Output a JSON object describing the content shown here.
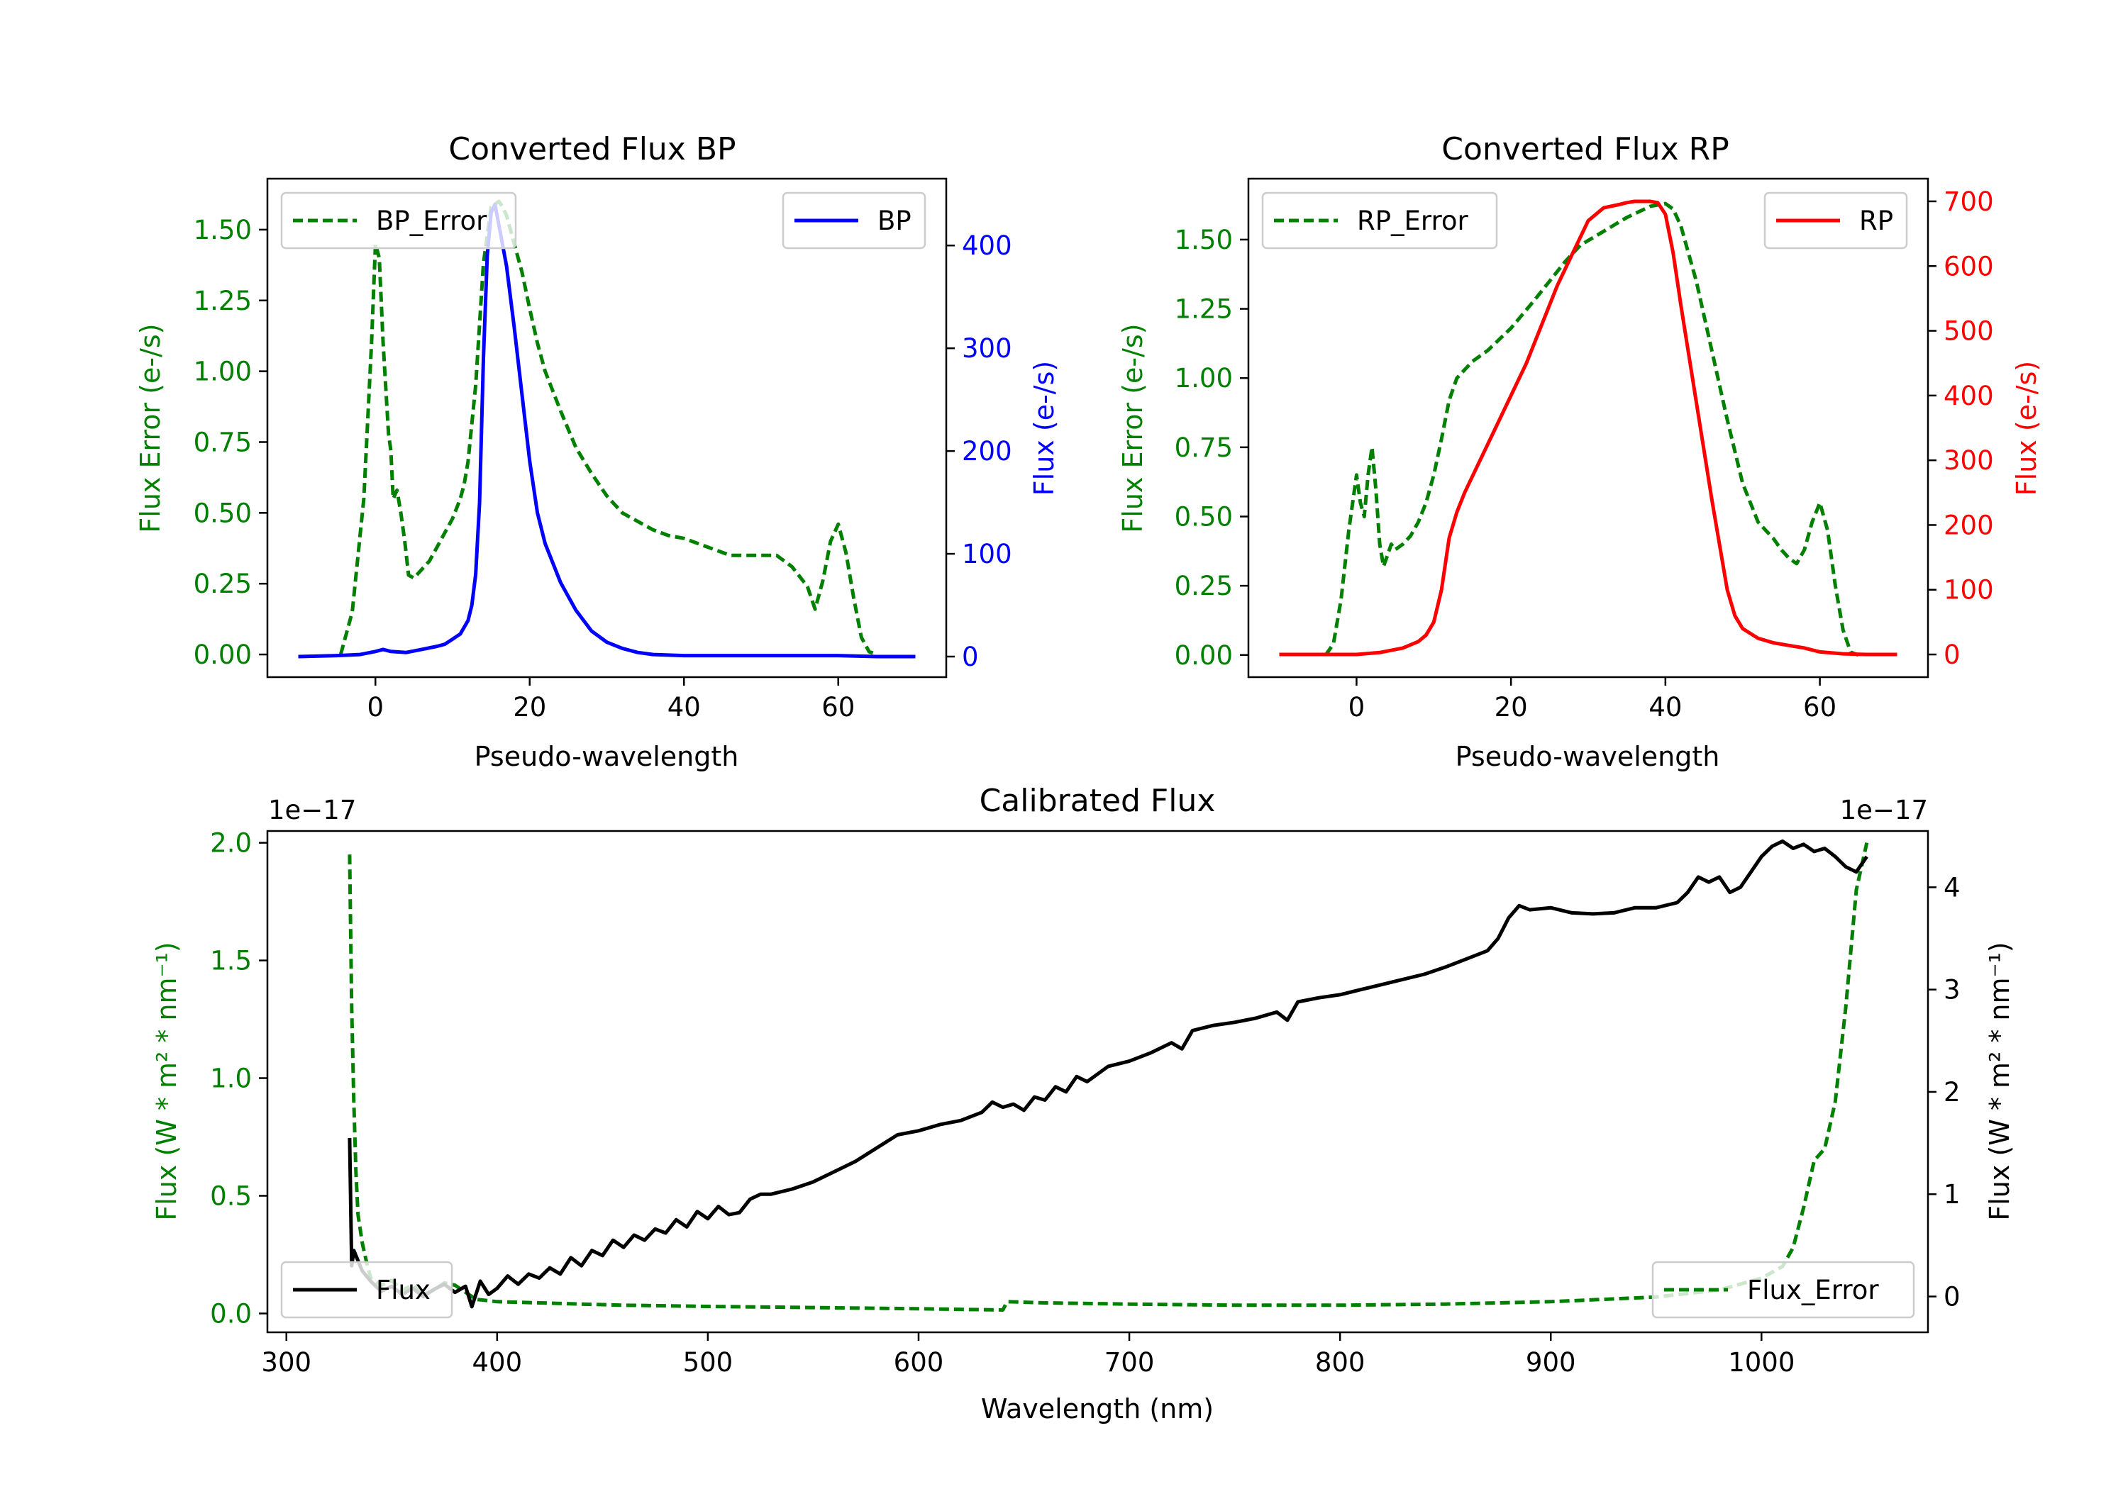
{
  "colors": {
    "green": "#008000",
    "blue": "#0000ff",
    "red": "#ff0000",
    "black": "#000000"
  },
  "chart_data": [
    {
      "type": "line",
      "title": "Converted Flux BP",
      "xlabel": "Pseudo-wavelength",
      "ylabel_left": "Flux Error (e-/s)",
      "ylabel_right": "Flux (e-/s)",
      "xlim": [
        -14,
        74
      ],
      "ylim_left": [
        -0.08,
        1.68
      ],
      "ylim_right": [
        -20,
        465
      ],
      "xticks": [
        0,
        20,
        40,
        60
      ],
      "yticks_left": [
        0.0,
        0.25,
        0.5,
        0.75,
        1.0,
        1.25,
        1.5
      ],
      "yticks_left_labels": [
        "0.00",
        "0.25",
        "0.50",
        "0.75",
        "1.00",
        "1.25",
        "1.50"
      ],
      "yticks_right": [
        0,
        100,
        200,
        300,
        400
      ],
      "legend_left": "BP_Error",
      "legend_right": "BP",
      "series": [
        {
          "name": "BP_Error",
          "axis": "left",
          "color": "green",
          "dash": true,
          "x": [
            -4.5,
            -3,
            -1.5,
            -0.5,
            0,
            0.5,
            1,
            1.7,
            2,
            2.3,
            2.8,
            3.3,
            3.8,
            4.3,
            5,
            6,
            7,
            8,
            9,
            10,
            11,
            11.5,
            12,
            13,
            14,
            15,
            16,
            16.5,
            17,
            17.5,
            18,
            19,
            20,
            21,
            22,
            24,
            26,
            28,
            30,
            32,
            34,
            36,
            38,
            40,
            42,
            44,
            46,
            48,
            50,
            52,
            54,
            56,
            56.5,
            57,
            58,
            59,
            60,
            61,
            62,
            63,
            64,
            65
          ],
          "y": [
            0.0,
            0.15,
            0.55,
            1.1,
            1.45,
            1.4,
            1.1,
            0.78,
            0.72,
            0.55,
            0.58,
            0.5,
            0.4,
            0.28,
            0.27,
            0.3,
            0.33,
            0.38,
            0.43,
            0.48,
            0.55,
            0.6,
            0.68,
            0.95,
            1.38,
            1.58,
            1.6,
            1.58,
            1.55,
            1.5,
            1.45,
            1.35,
            1.22,
            1.1,
            1.0,
            0.86,
            0.73,
            0.64,
            0.56,
            0.5,
            0.47,
            0.44,
            0.42,
            0.41,
            0.39,
            0.37,
            0.35,
            0.35,
            0.35,
            0.35,
            0.31,
            0.24,
            0.2,
            0.16,
            0.26,
            0.4,
            0.46,
            0.36,
            0.2,
            0.06,
            0.01,
            0.0
          ]
        },
        {
          "name": "BP",
          "axis": "right",
          "color": "blue",
          "dash": false,
          "x": [
            -10,
            -5,
            -2,
            0,
            1,
            2,
            4,
            6,
            8,
            9,
            10,
            11,
            12,
            12.5,
            13,
            13.5,
            14,
            14.5,
            15,
            15.5,
            16,
            17,
            18,
            19,
            20,
            21,
            22,
            24,
            26,
            28,
            30,
            32,
            34,
            36,
            40,
            50,
            60,
            65,
            70
          ],
          "y": [
            0,
            1,
            2,
            5,
            7,
            5,
            4,
            7,
            10,
            12,
            17,
            22,
            35,
            50,
            80,
            150,
            290,
            390,
            432,
            440,
            420,
            380,
            320,
            255,
            190,
            140,
            110,
            72,
            45,
            25,
            14,
            8,
            4,
            2,
            1,
            1,
            1,
            0,
            0
          ]
        }
      ]
    },
    {
      "type": "line",
      "title": "Converted Flux RP",
      "xlabel": "Pseudo-wavelength",
      "ylabel_left": "Flux Error (e-/s)",
      "ylabel_right": "Flux (e-/s)",
      "xlim": [
        -14,
        74
      ],
      "ylim_left": [
        -0.08,
        1.72
      ],
      "ylim_right": [
        -35,
        735
      ],
      "xticks": [
        0,
        20,
        40,
        60
      ],
      "yticks_left": [
        0.0,
        0.25,
        0.5,
        0.75,
        1.0,
        1.25,
        1.5
      ],
      "yticks_left_labels": [
        "0.00",
        "0.25",
        "0.50",
        "0.75",
        "1.00",
        "1.25",
        "1.50"
      ],
      "yticks_right": [
        0,
        100,
        200,
        300,
        400,
        500,
        600,
        700
      ],
      "legend_left": "RP_Error",
      "legend_right": "RP",
      "series": [
        {
          "name": "RP_Error",
          "axis": "left",
          "color": "green",
          "dash": true,
          "x": [
            -4,
            -3,
            -2,
            -1,
            0,
            0.5,
            1,
            1.5,
            2,
            2.5,
            3,
            3.5,
            4,
            4.5,
            5,
            6,
            7,
            8,
            9,
            10,
            11,
            12,
            13,
            14,
            15,
            17,
            20,
            23,
            25,
            27,
            29,
            32,
            35,
            38,
            40,
            41,
            42,
            43,
            44,
            46,
            48,
            50,
            52,
            54,
            55,
            56,
            57,
            58,
            59,
            60,
            61,
            62,
            63,
            64,
            65
          ],
          "y": [
            0.0,
            0.04,
            0.2,
            0.45,
            0.65,
            0.55,
            0.5,
            0.65,
            0.75,
            0.6,
            0.4,
            0.32,
            0.36,
            0.4,
            0.38,
            0.4,
            0.43,
            0.48,
            0.55,
            0.65,
            0.78,
            0.92,
            1.0,
            1.03,
            1.06,
            1.1,
            1.18,
            1.28,
            1.35,
            1.42,
            1.48,
            1.53,
            1.58,
            1.62,
            1.63,
            1.61,
            1.55,
            1.45,
            1.35,
            1.1,
            0.85,
            0.62,
            0.48,
            0.42,
            0.38,
            0.35,
            0.33,
            0.38,
            0.48,
            0.55,
            0.45,
            0.25,
            0.09,
            0.01,
            0.0
          ]
        },
        {
          "name": "RP",
          "axis": "right",
          "color": "red",
          "dash": false,
          "x": [
            -10,
            -5,
            0,
            3,
            6,
            8,
            9,
            10,
            11,
            12,
            13,
            14,
            16,
            18,
            20,
            22,
            24,
            26,
            28,
            30,
            32,
            34,
            35,
            36,
            37,
            38,
            39,
            40,
            41,
            42,
            44,
            46,
            48,
            49,
            50,
            52,
            54,
            56,
            58,
            60,
            63,
            66,
            70
          ],
          "y": [
            0,
            0,
            0,
            3,
            10,
            20,
            30,
            50,
            100,
            180,
            220,
            250,
            300,
            350,
            400,
            450,
            510,
            570,
            620,
            670,
            690,
            695,
            698,
            700,
            700,
            700,
            698,
            680,
            620,
            540,
            390,
            240,
            100,
            60,
            40,
            25,
            18,
            14,
            10,
            4,
            1,
            0,
            0
          ]
        }
      ]
    },
    {
      "type": "line",
      "title": "Calibrated Flux",
      "xlabel": "Wavelength (nm)",
      "ylabel_left": "Flux (W * m² * nm⁻¹)",
      "ylabel_right": "Flux (W * m² * nm⁻¹)",
      "scale_left": "1e−17",
      "scale_right": "1e−17",
      "xlim": [
        291,
        1079
      ],
      "ylim_left": [
        -0.08,
        2.05
      ],
      "ylim_right": [
        -0.35,
        4.55
      ],
      "xticks": [
        300,
        400,
        500,
        600,
        700,
        800,
        900,
        1000
      ],
      "yticks_left": [
        0.0,
        0.5,
        1.0,
        1.5,
        2.0
      ],
      "yticks_left_labels": [
        "0.0",
        "0.5",
        "1.0",
        "1.5",
        "2.0"
      ],
      "yticks_right": [
        0,
        1,
        2,
        3,
        4
      ],
      "legend_left": "Flux",
      "legend_right": "Flux_Error",
      "series": [
        {
          "name": "Flux_Error",
          "axis": "left",
          "color": "green",
          "dash": true,
          "x": [
            330,
            331,
            332,
            333,
            334,
            336,
            338,
            340,
            345,
            350,
            355,
            360,
            365,
            370,
            375,
            380,
            385,
            390,
            400,
            420,
            440,
            460,
            500,
            550,
            600,
            640,
            642,
            660,
            700,
            750,
            800,
            850,
            900,
            950,
            980,
            1000,
            1010,
            1015,
            1020,
            1025,
            1030,
            1035,
            1040,
            1045,
            1050
          ],
          "y": [
            1.95,
            1.3,
            0.9,
            0.6,
            0.42,
            0.3,
            0.22,
            0.15,
            0.12,
            0.14,
            0.1,
            0.12,
            0.08,
            0.1,
            0.13,
            0.12,
            0.09,
            0.06,
            0.05,
            0.045,
            0.04,
            0.035,
            0.03,
            0.025,
            0.02,
            0.015,
            0.05,
            0.045,
            0.04,
            0.035,
            0.035,
            0.04,
            0.05,
            0.07,
            0.1,
            0.15,
            0.2,
            0.28,
            0.45,
            0.65,
            0.7,
            0.9,
            1.3,
            1.8,
            2.0
          ]
        },
        {
          "name": "Flux",
          "axis": "right",
          "color": "black",
          "dash": false,
          "x": [
            330,
            331,
            332,
            334,
            336,
            340,
            345,
            350,
            355,
            360,
            365,
            370,
            375,
            380,
            385,
            388,
            392,
            396,
            400,
            405,
            410,
            415,
            420,
            425,
            430,
            435,
            440,
            445,
            450,
            455,
            460,
            465,
            470,
            475,
            480,
            485,
            490,
            495,
            500,
            505,
            510,
            515,
            520,
            525,
            530,
            540,
            550,
            560,
            570,
            580,
            590,
            600,
            610,
            620,
            630,
            635,
            640,
            645,
            650,
            655,
            660,
            665,
            670,
            675,
            680,
            690,
            700,
            710,
            720,
            725,
            730,
            740,
            750,
            760,
            770,
            775,
            780,
            790,
            800,
            810,
            820,
            830,
            840,
            850,
            860,
            870,
            875,
            880,
            885,
            890,
            900,
            910,
            920,
            930,
            940,
            950,
            960,
            965,
            970,
            975,
            980,
            985,
            990,
            995,
            1000,
            1005,
            1010,
            1015,
            1020,
            1025,
            1030,
            1035,
            1040,
            1045,
            1050
          ],
          "y": [
            1.55,
            0.3,
            0.45,
            0.35,
            0.25,
            0.15,
            0.05,
            0.1,
            0.02,
            0.08,
            0.0,
            0.07,
            0.12,
            0.04,
            0.1,
            -0.1,
            0.15,
            0.02,
            0.08,
            0.2,
            0.12,
            0.22,
            0.18,
            0.28,
            0.22,
            0.38,
            0.3,
            0.45,
            0.4,
            0.55,
            0.48,
            0.6,
            0.55,
            0.66,
            0.62,
            0.75,
            0.68,
            0.83,
            0.76,
            0.88,
            0.8,
            0.82,
            0.95,
            1.0,
            1.0,
            1.05,
            1.12,
            1.22,
            1.32,
            1.45,
            1.58,
            1.62,
            1.68,
            1.72,
            1.8,
            1.9,
            1.85,
            1.88,
            1.82,
            1.95,
            1.92,
            2.05,
            2.0,
            2.15,
            2.1,
            2.25,
            2.3,
            2.38,
            2.48,
            2.42,
            2.6,
            2.65,
            2.68,
            2.72,
            2.78,
            2.7,
            2.88,
            2.92,
            2.95,
            3.0,
            3.05,
            3.1,
            3.15,
            3.22,
            3.3,
            3.38,
            3.5,
            3.7,
            3.82,
            3.78,
            3.8,
            3.75,
            3.74,
            3.75,
            3.8,
            3.8,
            3.85,
            3.95,
            4.1,
            4.05,
            4.1,
            3.95,
            4.0,
            4.15,
            4.3,
            4.4,
            4.45,
            4.38,
            4.42,
            4.35,
            4.38,
            4.3,
            4.2,
            4.15,
            4.3
          ]
        }
      ]
    }
  ]
}
